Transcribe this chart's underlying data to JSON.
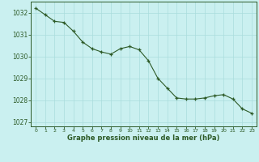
{
  "x": [
    0,
    1,
    2,
    3,
    4,
    5,
    6,
    7,
    8,
    9,
    10,
    11,
    12,
    13,
    14,
    15,
    16,
    17,
    18,
    19,
    20,
    21,
    22,
    23
  ],
  "y": [
    1032.2,
    1031.9,
    1031.6,
    1031.55,
    1031.15,
    1030.65,
    1030.35,
    1030.2,
    1030.1,
    1030.35,
    1030.45,
    1030.3,
    1029.8,
    1029.0,
    1028.55,
    1028.1,
    1028.05,
    1028.05,
    1028.1,
    1028.2,
    1028.25,
    1028.05,
    1027.6,
    1027.4
  ],
  "bg_color": "#caf0f0",
  "line_color": "#2d5a27",
  "marker_color": "#2d5a27",
  "grid_color": "#aadddd",
  "ylabel_ticks": [
    1027,
    1028,
    1029,
    1030,
    1031,
    1032
  ],
  "xlabel": "Graphe pression niveau de la mer (hPa)",
  "ylim": [
    1026.8,
    1032.5
  ],
  "xlim": [
    -0.5,
    23.5
  ]
}
